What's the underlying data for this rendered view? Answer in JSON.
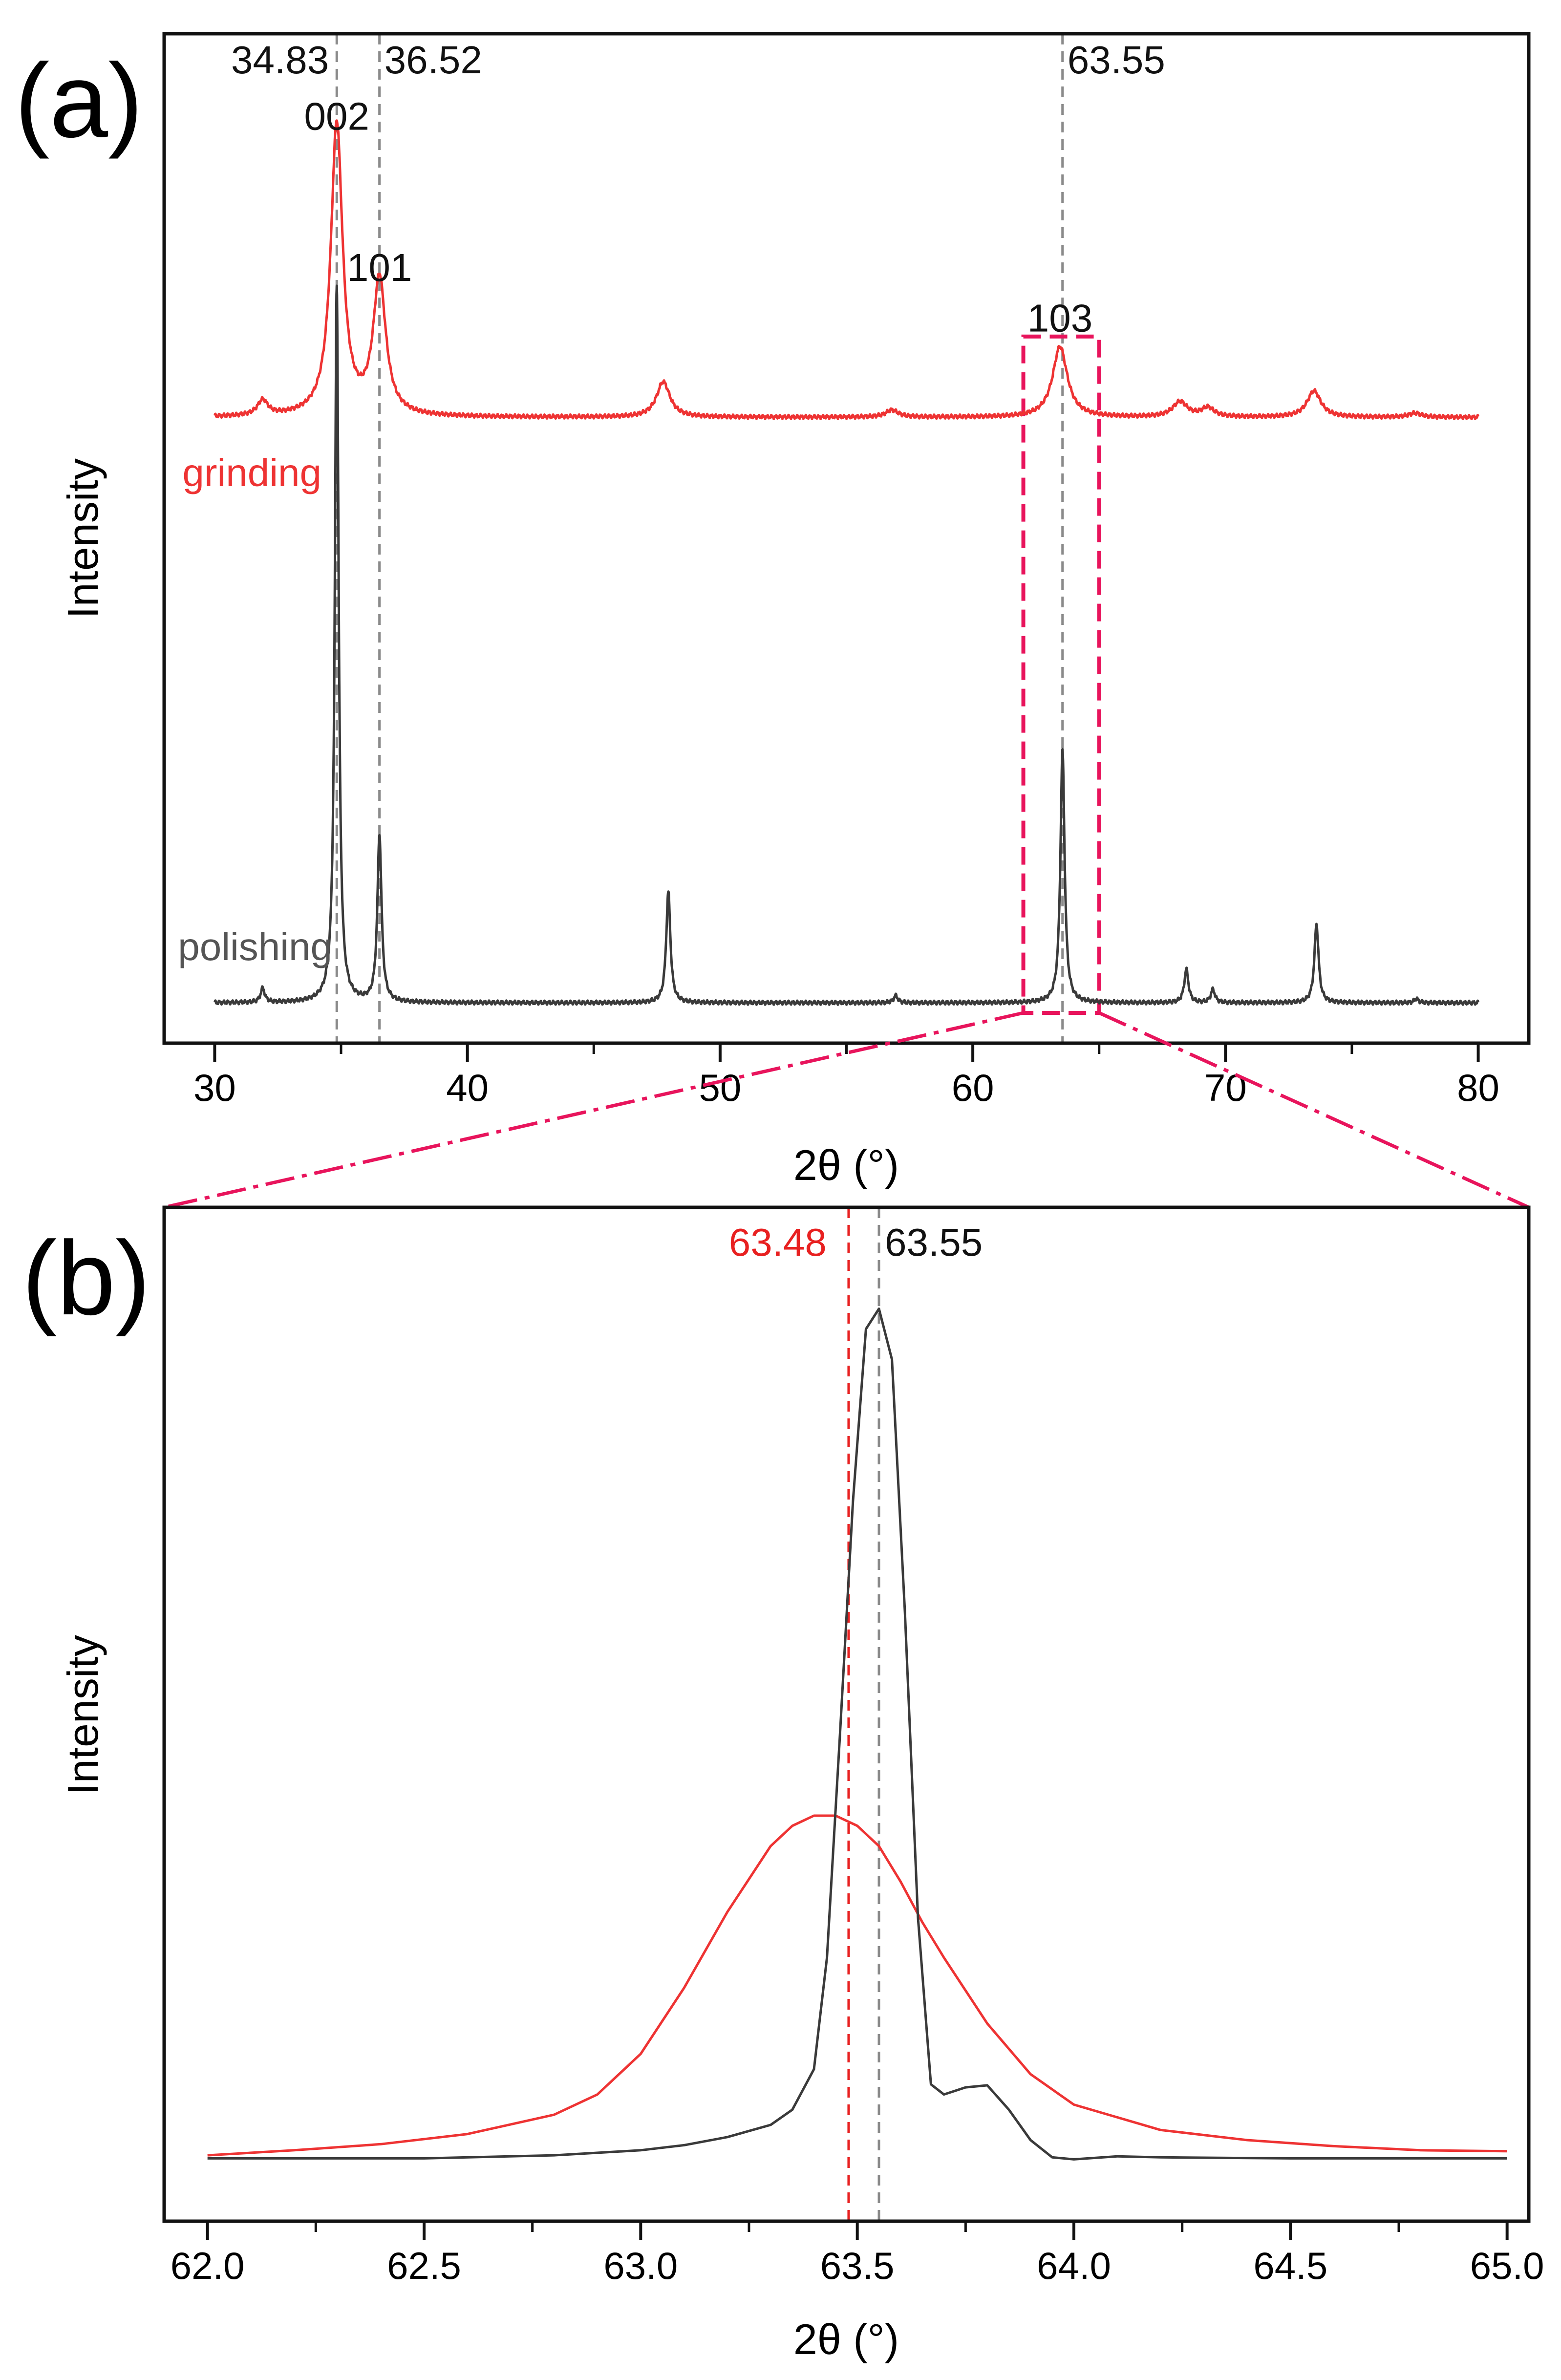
{
  "colors": {
    "grinding": "#ee3333",
    "polishing": "#3a3a3a",
    "frame": "#111111",
    "reference_line": "#8a8a8a",
    "zoom_box": "#e8145c",
    "red_reference": "#e82020"
  },
  "chart_data": [
    {
      "id": "a",
      "type": "line",
      "panel_label": "(a)",
      "xlabel": "2θ (°)",
      "ylabel": "Intensity",
      "xlim": [
        28,
        82
      ],
      "ylim": [
        0,
        100
      ],
      "x_ticks": [
        30,
        40,
        50,
        60,
        70,
        80
      ],
      "x_tick_labels": [
        "30",
        "40",
        "50",
        "60",
        "70",
        "80"
      ],
      "y_ticks_visible": false,
      "reference_lines": [
        {
          "x": 34.83,
          "label": "34.83"
        },
        {
          "x": 36.52,
          "label": "36.52"
        },
        {
          "x": 63.55,
          "label": "63.55"
        }
      ],
      "peak_labels": [
        {
          "x": 34.83,
          "y": 90.5,
          "label": "002"
        },
        {
          "x": 36.52,
          "y": 75.5,
          "label": "101"
        },
        {
          "x": 63.45,
          "y": 70.5,
          "label": "103"
        }
      ],
      "zoom_region": {
        "x_range": [
          62,
          65
        ],
        "y_range": [
          3,
          70
        ]
      },
      "series": [
        {
          "name": "grinding",
          "label": "grinding",
          "color": "#ee3333",
          "baseline": 62,
          "peaks": [
            {
              "x": 31.9,
              "h": 1.5,
              "w": 0.25
            },
            {
              "x": 34.83,
              "h": 29,
              "w": 0.28
            },
            {
              "x": 36.52,
              "h": 13.5,
              "w": 0.3
            },
            {
              "x": 47.75,
              "h": 3.5,
              "w": 0.32
            },
            {
              "x": 56.8,
              "h": 0.7,
              "w": 0.3
            },
            {
              "x": 63.45,
              "h": 7,
              "w": 0.35
            },
            {
              "x": 68.2,
              "h": 1.5,
              "w": 0.35
            },
            {
              "x": 69.3,
              "h": 0.9,
              "w": 0.3
            },
            {
              "x": 73.5,
              "h": 2.6,
              "w": 0.33
            },
            {
              "x": 77.5,
              "h": 0.4,
              "w": 0.3
            }
          ]
        },
        {
          "name": "polishing",
          "label": "polishing",
          "color": "#3a3a3a",
          "baseline": 4,
          "peaks": [
            {
              "x": 31.9,
              "h": 1.4,
              "w": 0.1
            },
            {
              "x": 34.83,
              "h": 71,
              "w": 0.09
            },
            {
              "x": 36.52,
              "h": 16.5,
              "w": 0.1
            },
            {
              "x": 47.95,
              "h": 11,
              "w": 0.1
            },
            {
              "x": 56.95,
              "h": 0.7,
              "w": 0.1
            },
            {
              "x": 63.55,
              "h": 25,
              "w": 0.1
            },
            {
              "x": 68.45,
              "h": 3.3,
              "w": 0.1
            },
            {
              "x": 69.5,
              "h": 1.3,
              "w": 0.1
            },
            {
              "x": 73.6,
              "h": 7.8,
              "w": 0.1
            },
            {
              "x": 77.55,
              "h": 0.4,
              "w": 0.1
            }
          ]
        }
      ]
    },
    {
      "id": "b",
      "type": "line",
      "panel_label": "(b)",
      "xlabel": "2θ (°)",
      "ylabel": "Intensity",
      "xlim": [
        61.9,
        65.05
      ],
      "ylim": [
        0,
        100
      ],
      "x_ticks": [
        62.0,
        62.5,
        63.0,
        63.5,
        64.0,
        64.5,
        65.0
      ],
      "x_tick_labels": [
        "62.0",
        "62.5",
        "63.0",
        "63.5",
        "64.0",
        "64.5",
        "65.0"
      ],
      "y_ticks_visible": false,
      "reference_lines": [
        {
          "x": 63.48,
          "label": "63.48",
          "color": "#e82020"
        },
        {
          "x": 63.55,
          "label": "63.55",
          "color": "#8a8a8a"
        }
      ],
      "series": [
        {
          "name": "grinding",
          "color": "#ee3333",
          "x": [
            62.0,
            62.2,
            62.4,
            62.6,
            62.8,
            62.9,
            63.0,
            63.1,
            63.2,
            63.3,
            63.35,
            63.4,
            63.45,
            63.5,
            63.55,
            63.6,
            63.65,
            63.7,
            63.8,
            63.9,
            64.0,
            64.2,
            64.4,
            64.6,
            64.8,
            65.0
          ],
          "y": [
            6.5,
            7.0,
            7.6,
            8.6,
            10.5,
            12.5,
            16.5,
            23.0,
            30.5,
            37.0,
            39.0,
            40.0,
            40.0,
            39.0,
            37.0,
            33.5,
            29.5,
            26.0,
            19.5,
            14.5,
            11.5,
            9.0,
            8.0,
            7.4,
            7.0,
            6.9
          ]
        },
        {
          "name": "polishing",
          "color": "#3a3a3a",
          "x": [
            62.0,
            62.5,
            62.8,
            63.0,
            63.1,
            63.2,
            63.3,
            63.35,
            63.4,
            63.43,
            63.46,
            63.49,
            63.52,
            63.55,
            63.58,
            63.61,
            63.64,
            63.67,
            63.7,
            63.75,
            63.8,
            63.85,
            63.9,
            63.95,
            64.0,
            64.1,
            64.2,
            64.5,
            65.0
          ],
          "y": [
            6.2,
            6.2,
            6.5,
            7.0,
            7.5,
            8.3,
            9.5,
            11.0,
            15.0,
            26.0,
            48.0,
            71.0,
            88.0,
            90.0,
            85.0,
            60.0,
            30.0,
            13.5,
            12.5,
            13.2,
            13.4,
            11.0,
            8.0,
            6.3,
            6.1,
            6.4,
            6.3,
            6.2,
            6.2
          ]
        }
      ]
    }
  ]
}
